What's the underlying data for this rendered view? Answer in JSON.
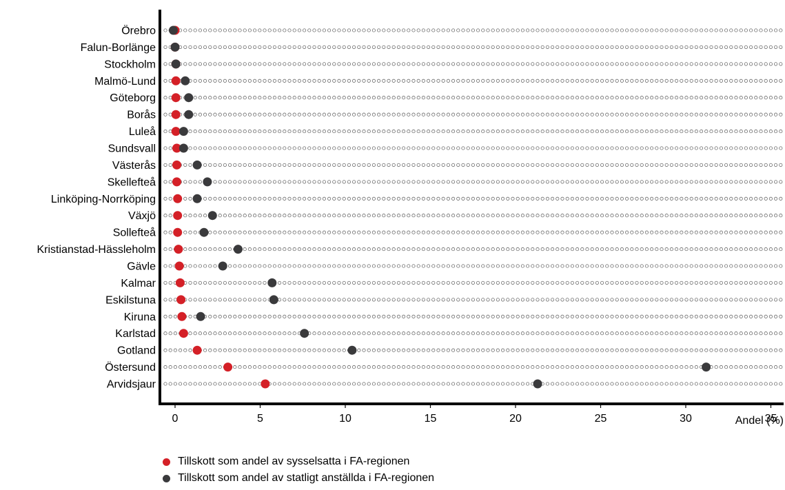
{
  "chart_data": {
    "type": "scatter",
    "subtype": "dot-plot",
    "xlabel": "Andel (%)",
    "xlim": [
      -0.8,
      35.5
    ],
    "xticks": [
      0,
      5,
      10,
      15,
      20,
      25,
      30,
      35
    ],
    "grid": false,
    "dotted_guides": true,
    "categories": [
      "Örebro",
      "Falun-Borlänge",
      "Stockholm",
      "Malmö-Lund",
      "Göteborg",
      "Borås",
      "Luleå",
      "Sundsvall",
      "Västerås",
      "Skellefteå",
      "Linköping-Norrköping",
      "Växjö",
      "Sollefteå",
      "Kristianstad-Hässleholm",
      "Gävle",
      "Kalmar",
      "Eskilstuna",
      "Kiruna",
      "Karlstad",
      "Gotland",
      "Östersund",
      "Arvidsjaur"
    ],
    "series": [
      {
        "name": "Tillskott som andel av sysselsatta i FA-regionen",
        "color": "#d42027",
        "values": [
          0.0,
          0.0,
          0.05,
          0.05,
          0.05,
          0.05,
          0.05,
          0.1,
          0.1,
          0.1,
          0.15,
          0.15,
          0.15,
          0.2,
          0.25,
          0.3,
          0.35,
          0.4,
          0.5,
          1.3,
          3.1,
          5.3
        ]
      },
      {
        "name": "Tillskott som andel av statligt anställda i FA-regionen",
        "color": "#3a3a3c",
        "values": [
          -0.1,
          0.0,
          0.05,
          0.6,
          0.8,
          0.8,
          0.5,
          0.5,
          1.3,
          1.9,
          1.3,
          2.2,
          1.7,
          3.7,
          2.8,
          5.7,
          5.8,
          1.5,
          7.6,
          10.4,
          31.2,
          21.3
        ]
      }
    ]
  },
  "legend": {
    "items": [
      {
        "label": "Tillskott som andel av sysselsatta i FA-regionen",
        "color": "#d42027"
      },
      {
        "label": "Tillskott som andel av statligt anställda i FA-regionen",
        "color": "#3a3a3c"
      }
    ]
  }
}
